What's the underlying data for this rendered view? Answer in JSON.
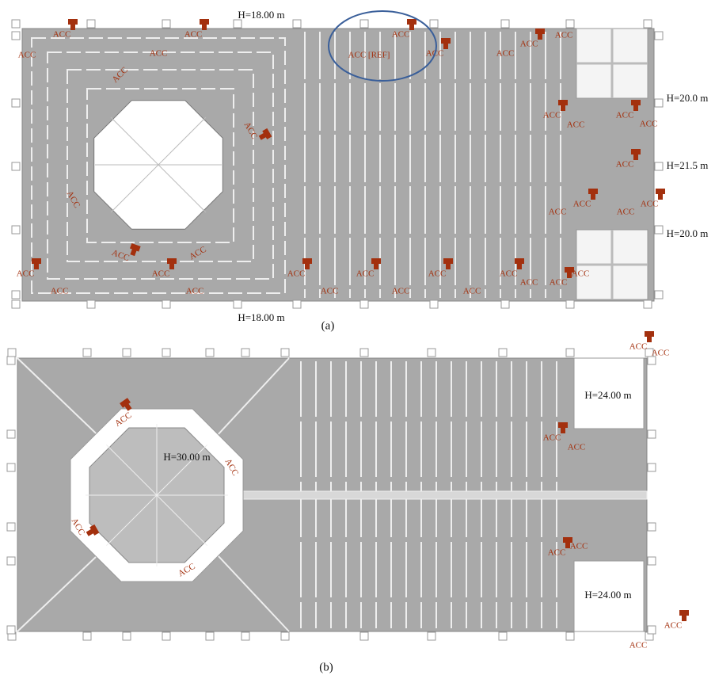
{
  "panels": [
    {
      "caption": "(a)",
      "height_labels": [
        "H=18.00 m",
        "H=18.00 m",
        "H=20.0 m",
        "H=21.5 m",
        "H=20.0 m"
      ],
      "sensor_labels": [
        "ACC",
        "ACC",
        "ACC",
        "ACC",
        "ACC",
        "ACC [REF]",
        "ACC",
        "ACC",
        "ACC",
        "ACC",
        "ACC",
        "ACC",
        "ACC",
        "ACC",
        "ACC",
        "ACC",
        "ACC",
        "ACC",
        "ACC",
        "ACC",
        "ACC",
        "ACC",
        "ACC",
        "ACC",
        "ACC",
        "ACC",
        "ACC",
        "ACC",
        "ACC",
        "ACC",
        "ACC",
        "ACC",
        "ACC",
        "ACC",
        "ACC",
        "ACC",
        "ACC",
        "ACC"
      ]
    },
    {
      "caption": "(b)",
      "height_labels": [
        "H=24.00 m",
        "H=30.00 m",
        "H=24.00 m"
      ],
      "sensor_labels": [
        "ACC",
        "ACC",
        "ACC",
        "ACC",
        "ACC",
        "ACC",
        "ACC",
        "ACC",
        "ACC",
        "ACC",
        "ACC",
        "ACC"
      ]
    }
  ]
}
